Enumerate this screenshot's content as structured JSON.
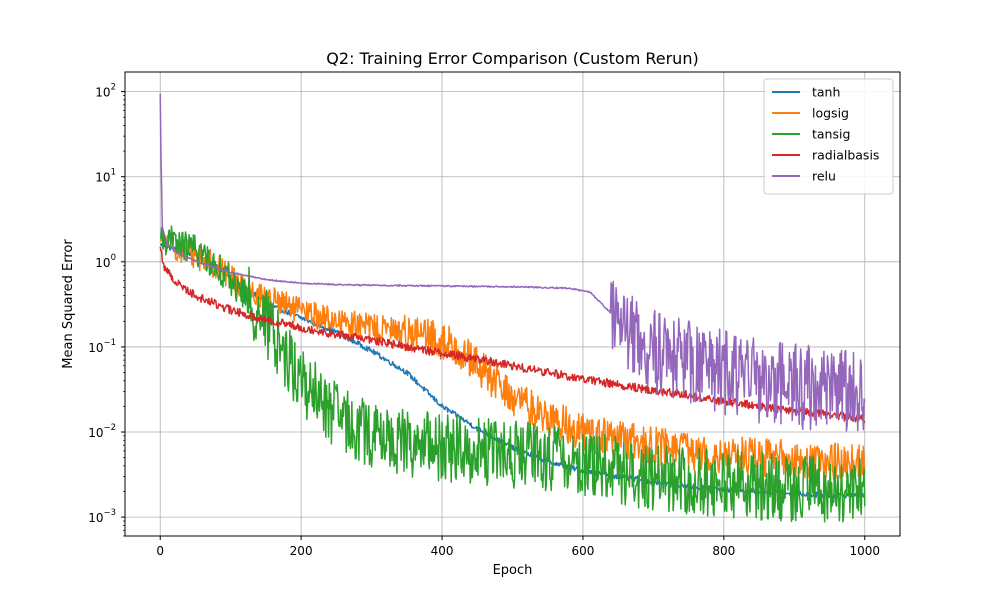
{
  "chart_data": {
    "type": "line",
    "title": "Q2: Training Error Comparison (Custom Rerun)",
    "xlabel": "Epoch",
    "ylabel": "Mean Squared Error",
    "xlim": [
      -50,
      1050
    ],
    "ylim": [
      0.0006,
      170
    ],
    "yscale": "log",
    "grid": true,
    "legend_position": "top-right",
    "x_ticks": [
      0,
      200,
      400,
      600,
      800,
      1000
    ],
    "x_tick_labels": [
      "0",
      "200",
      "400",
      "600",
      "800",
      "1000"
    ],
    "y_ticks": [
      0.001,
      0.01,
      0.1,
      1,
      10,
      100
    ],
    "y_tick_labels": [
      {
        "base": "10",
        "exp": "−3"
      },
      {
        "base": "10",
        "exp": "−2"
      },
      {
        "base": "10",
        "exp": "−1"
      },
      {
        "base": "10",
        "exp": "0"
      },
      {
        "base": "10",
        "exp": "1"
      },
      {
        "base": "10",
        "exp": "2"
      }
    ],
    "series": [
      {
        "name": "tanh",
        "color": "#1f77b4",
        "x": [
          0,
          20,
          50,
          80,
          120,
          160,
          200,
          250,
          300,
          350,
          400,
          450,
          500,
          550,
          600,
          650,
          700,
          750,
          800,
          850,
          900,
          950,
          1000
        ],
        "y": [
          1.6,
          1.4,
          1.2,
          0.9,
          0.5,
          0.3,
          0.22,
          0.15,
          0.09,
          0.05,
          0.02,
          0.011,
          0.0065,
          0.0045,
          0.0035,
          0.003,
          0.0026,
          0.0023,
          0.0021,
          0.002,
          0.0019,
          0.0018,
          0.0018
        ],
        "noise": 0.03
      },
      {
        "name": "logsig",
        "color": "#ff7f0e",
        "x": [
          0,
          20,
          50,
          80,
          120,
          160,
          200,
          250,
          300,
          350,
          380,
          420,
          460,
          500,
          550,
          600,
          650,
          700,
          750,
          800,
          850,
          900,
          950,
          1000
        ],
        "y": [
          1.8,
          1.5,
          1.2,
          0.9,
          0.5,
          0.35,
          0.26,
          0.2,
          0.17,
          0.15,
          0.13,
          0.1,
          0.05,
          0.025,
          0.015,
          0.01,
          0.008,
          0.007,
          0.006,
          0.0055,
          0.005,
          0.0048,
          0.0045,
          0.0043
        ],
        "noise": 0.16
      },
      {
        "name": "tansig",
        "color": "#2ca02c",
        "x": [
          0,
          20,
          50,
          80,
          120,
          160,
          200,
          250,
          300,
          350,
          400,
          450,
          500,
          550,
          600,
          650,
          700,
          750,
          800,
          850,
          900,
          950,
          1000
        ],
        "y": [
          1.9,
          1.7,
          1.4,
          0.9,
          0.4,
          0.15,
          0.04,
          0.015,
          0.009,
          0.0075,
          0.0065,
          0.006,
          0.0055,
          0.005,
          0.0045,
          0.0035,
          0.003,
          0.0027,
          0.0025,
          0.0023,
          0.0022,
          0.0021,
          0.002
        ],
        "noise": 0.4
      },
      {
        "name": "radialbasis",
        "color": "#d62728",
        "x": [
          0,
          5,
          20,
          50,
          100,
          150,
          200,
          250,
          300,
          350,
          400,
          450,
          500,
          550,
          600,
          650,
          700,
          750,
          800,
          850,
          900,
          950,
          1000
        ],
        "y": [
          1.5,
          0.9,
          0.6,
          0.4,
          0.27,
          0.21,
          0.17,
          0.14,
          0.12,
          0.1,
          0.085,
          0.072,
          0.06,
          0.05,
          0.042,
          0.036,
          0.031,
          0.027,
          0.023,
          0.02,
          0.018,
          0.016,
          0.014
        ],
        "noise": 0.05
      },
      {
        "name": "relu",
        "color": "#9467bd",
        "x": [
          0,
          1,
          3,
          10,
          30,
          60,
          100,
          150,
          200,
          250,
          300,
          400,
          500,
          580,
          610,
          630,
          650,
          680,
          700,
          750,
          800,
          850,
          900,
          950,
          1000
        ],
        "y": [
          95,
          20,
          2.5,
          1.6,
          1.2,
          0.95,
          0.75,
          0.62,
          0.56,
          0.54,
          0.53,
          0.52,
          0.51,
          0.49,
          0.44,
          0.3,
          0.2,
          0.12,
          0.09,
          0.07,
          0.05,
          0.04,
          0.035,
          0.03,
          0.03
        ],
        "noise": 0.05
      }
    ]
  }
}
